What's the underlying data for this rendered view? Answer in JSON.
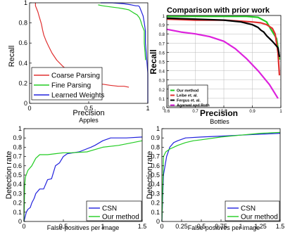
{
  "chart_data": [
    {
      "type": "line",
      "panel": "apples",
      "subtitle": "Apples",
      "xlabel": "Precision",
      "ylabel": "Recall",
      "xlim": [
        0,
        1
      ],
      "ylim": [
        0,
        1
      ],
      "xticks": [
        "0",
        "0.5",
        "1"
      ],
      "yticks": [
        "0",
        "0.2",
        "0.4",
        "0.6",
        "0.8",
        "1"
      ],
      "grid": false,
      "legend_position": "bottom-left",
      "series": [
        {
          "name": "Coarse Parsing",
          "color": "#e03030",
          "x": [
            0.05,
            0.05,
            0.07,
            0.08,
            0.09,
            0.1,
            0.11,
            0.12,
            0.14,
            0.16,
            0.19,
            0.23,
            0.28,
            0.33,
            0.38,
            0.43,
            0.48,
            0.52,
            0.55,
            0.58,
            0.62,
            0.68,
            0.75,
            0.8,
            0.84
          ],
          "y": [
            1.0,
            0.97,
            0.91,
            0.87,
            0.83,
            0.79,
            0.73,
            0.68,
            0.62,
            0.57,
            0.5,
            0.43,
            0.37,
            0.32,
            0.28,
            0.25,
            0.23,
            0.21,
            0.2,
            0.19,
            0.19,
            0.18,
            0.17,
            0.17,
            0.16
          ]
        },
        {
          "name": "Fine Parsing",
          "color": "#22cc22",
          "x": [
            0.58,
            0.62,
            0.68,
            0.75,
            0.8,
            0.84,
            0.88,
            0.91,
            0.93,
            0.94,
            0.95,
            0.96,
            0.97,
            0.97,
            0.98,
            0.98
          ],
          "y": [
            0.98,
            0.97,
            0.96,
            0.95,
            0.94,
            0.93,
            0.9,
            0.88,
            0.85,
            0.82,
            0.78,
            0.75,
            0.72,
            0.6,
            0.45,
            0.43
          ]
        },
        {
          "name": "Learned Weights",
          "color": "#2222dd",
          "x": [
            0.6,
            0.7,
            0.8,
            0.86,
            0.9,
            0.92,
            0.93,
            0.94,
            0.95,
            0.96,
            0.97,
            0.98,
            0.98,
            0.99,
            1.0,
            1.0
          ],
          "y": [
            1.0,
            1.0,
            0.99,
            0.98,
            0.97,
            0.97,
            0.96,
            0.93,
            0.9,
            0.87,
            0.8,
            0.72,
            0.6,
            0.45,
            0.3,
            0.0
          ]
        }
      ]
    },
    {
      "type": "line",
      "panel": "bottles",
      "title": "Comparison with prior work",
      "subtitle": "Bottles",
      "xlabel": "Precision",
      "ylabel": "Recall",
      "xlim": [
        0.6,
        1
      ],
      "ylim": [
        0,
        1
      ],
      "xticks": [
        "0.6",
        "0.7",
        "0.8",
        "0.9",
        "1"
      ],
      "yticks": [
        "0",
        "0.1",
        "0.2",
        "0.3",
        "0.4",
        "0.5",
        "0.6",
        "0.7",
        "0.8",
        "0.9",
        "1"
      ],
      "grid": true,
      "legend_position": "bottom-left",
      "series": [
        {
          "name": "Our method",
          "color": "#22cc22",
          "x": [
            0.6,
            0.7,
            0.8,
            0.88,
            0.92,
            0.95,
            0.965,
            0.975,
            0.985,
            0.99,
            0.995
          ],
          "y": [
            0.99,
            0.99,
            0.99,
            0.99,
            0.98,
            0.93,
            0.85,
            0.8,
            0.75,
            0.65,
            0.52
          ]
        },
        {
          "name": "Leibe et. al.",
          "color": "#e03030",
          "x": [
            0.6,
            0.7,
            0.8,
            0.85,
            0.9,
            0.93,
            0.95,
            0.97,
            0.98,
            0.99,
            0.995
          ],
          "y": [
            0.96,
            0.95,
            0.95,
            0.94,
            0.93,
            0.92,
            0.9,
            0.86,
            0.8,
            0.6,
            0.35
          ]
        },
        {
          "name": "Fergus et. al.",
          "color": "#000000",
          "x": [
            0.6,
            0.7,
            0.8,
            0.86,
            0.9,
            0.92,
            0.93,
            0.94,
            0.95,
            0.97,
            0.99,
            0.995
          ],
          "y": [
            0.97,
            0.96,
            0.95,
            0.93,
            0.9,
            0.87,
            0.84,
            0.82,
            0.78,
            0.72,
            0.65,
            0.55
          ]
        },
        {
          "name": "Agarwal and Roth",
          "color": "#dd22dd",
          "x": [
            0.6,
            0.65,
            0.7,
            0.75,
            0.8,
            0.84,
            0.88,
            0.92,
            0.96,
            0.99
          ],
          "y": [
            0.85,
            0.82,
            0.8,
            0.77,
            0.72,
            0.64,
            0.53,
            0.4,
            0.25,
            0.1
          ]
        }
      ]
    },
    {
      "type": "line",
      "panel": "bottom-left",
      "xlabel": "False-positives per image",
      "ylabel": "Detection rate",
      "xlim": [
        0,
        1.5
      ],
      "ylim": [
        0,
        1
      ],
      "xticks": [
        "0",
        "0.5",
        "1",
        "1.5"
      ],
      "yticks": [
        "0",
        "0.1",
        "0.2",
        "0.3",
        "0.4",
        "0.5",
        "0.6",
        "0.7",
        "0.8",
        "0.9",
        "1"
      ],
      "grid": false,
      "legend_position": "bottom-right",
      "series": [
        {
          "name": "CSN",
          "color": "#2222dd",
          "x": [
            0,
            0.03,
            0.05,
            0.08,
            0.1,
            0.13,
            0.15,
            0.2,
            0.25,
            0.3,
            0.35,
            0.4,
            0.45,
            0.5,
            0.55,
            0.7,
            0.85,
            0.9,
            1.0,
            1.1,
            1.3,
            1.5
          ],
          "y": [
            0.0,
            0.1,
            0.13,
            0.15,
            0.2,
            0.25,
            0.3,
            0.35,
            0.35,
            0.45,
            0.46,
            0.6,
            0.63,
            0.7,
            0.73,
            0.75,
            0.8,
            0.82,
            0.87,
            0.9,
            0.9,
            0.91
          ]
        },
        {
          "name": "Our method",
          "color": "#22cc22",
          "x": [
            0,
            0.01,
            0.02,
            0.05,
            0.1,
            0.15,
            0.2,
            0.3,
            0.4,
            0.5,
            0.6,
            0.8,
            1.0,
            1.2,
            1.5
          ],
          "y": [
            0.0,
            0.4,
            0.48,
            0.55,
            0.6,
            0.68,
            0.72,
            0.72,
            0.73,
            0.74,
            0.74,
            0.75,
            0.8,
            0.82,
            0.87
          ]
        }
      ]
    },
    {
      "type": "line",
      "panel": "bottom-right",
      "xlabel": "False-positives per image",
      "ylabel": "Detection rate",
      "xlim": [
        0,
        1.5
      ],
      "ylim": [
        0,
        1
      ],
      "xticks": [
        "0",
        "0.25",
        "0.5",
        "0.75",
        "1",
        "1.25",
        "1.5"
      ],
      "yticks": [
        "0",
        "0.1",
        "0.2",
        "0.3",
        "0.4",
        "0.5",
        "0.6",
        "0.7",
        "0.8",
        "0.9",
        "1"
      ],
      "grid": false,
      "legend_position": "bottom-right",
      "series": [
        {
          "name": "CSN",
          "color": "#2222dd",
          "x": [
            0,
            0.02,
            0.04,
            0.06,
            0.08,
            0.1,
            0.15,
            0.2,
            0.3,
            0.5,
            0.75,
            1.0,
            1.25,
            1.5
          ],
          "y": [
            0.0,
            0.5,
            0.6,
            0.7,
            0.75,
            0.8,
            0.85,
            0.87,
            0.9,
            0.91,
            0.92,
            0.93,
            0.94,
            0.95
          ]
        },
        {
          "name": "Our method",
          "color": "#22cc22",
          "x": [
            0,
            0.02,
            0.05,
            0.1,
            0.15,
            0.2,
            0.3,
            0.4,
            0.5,
            0.75,
            1.0,
            1.25,
            1.5
          ],
          "y": [
            0.0,
            0.7,
            0.75,
            0.78,
            0.8,
            0.82,
            0.85,
            0.87,
            0.88,
            0.91,
            0.93,
            0.95,
            0.96
          ]
        }
      ]
    }
  ]
}
